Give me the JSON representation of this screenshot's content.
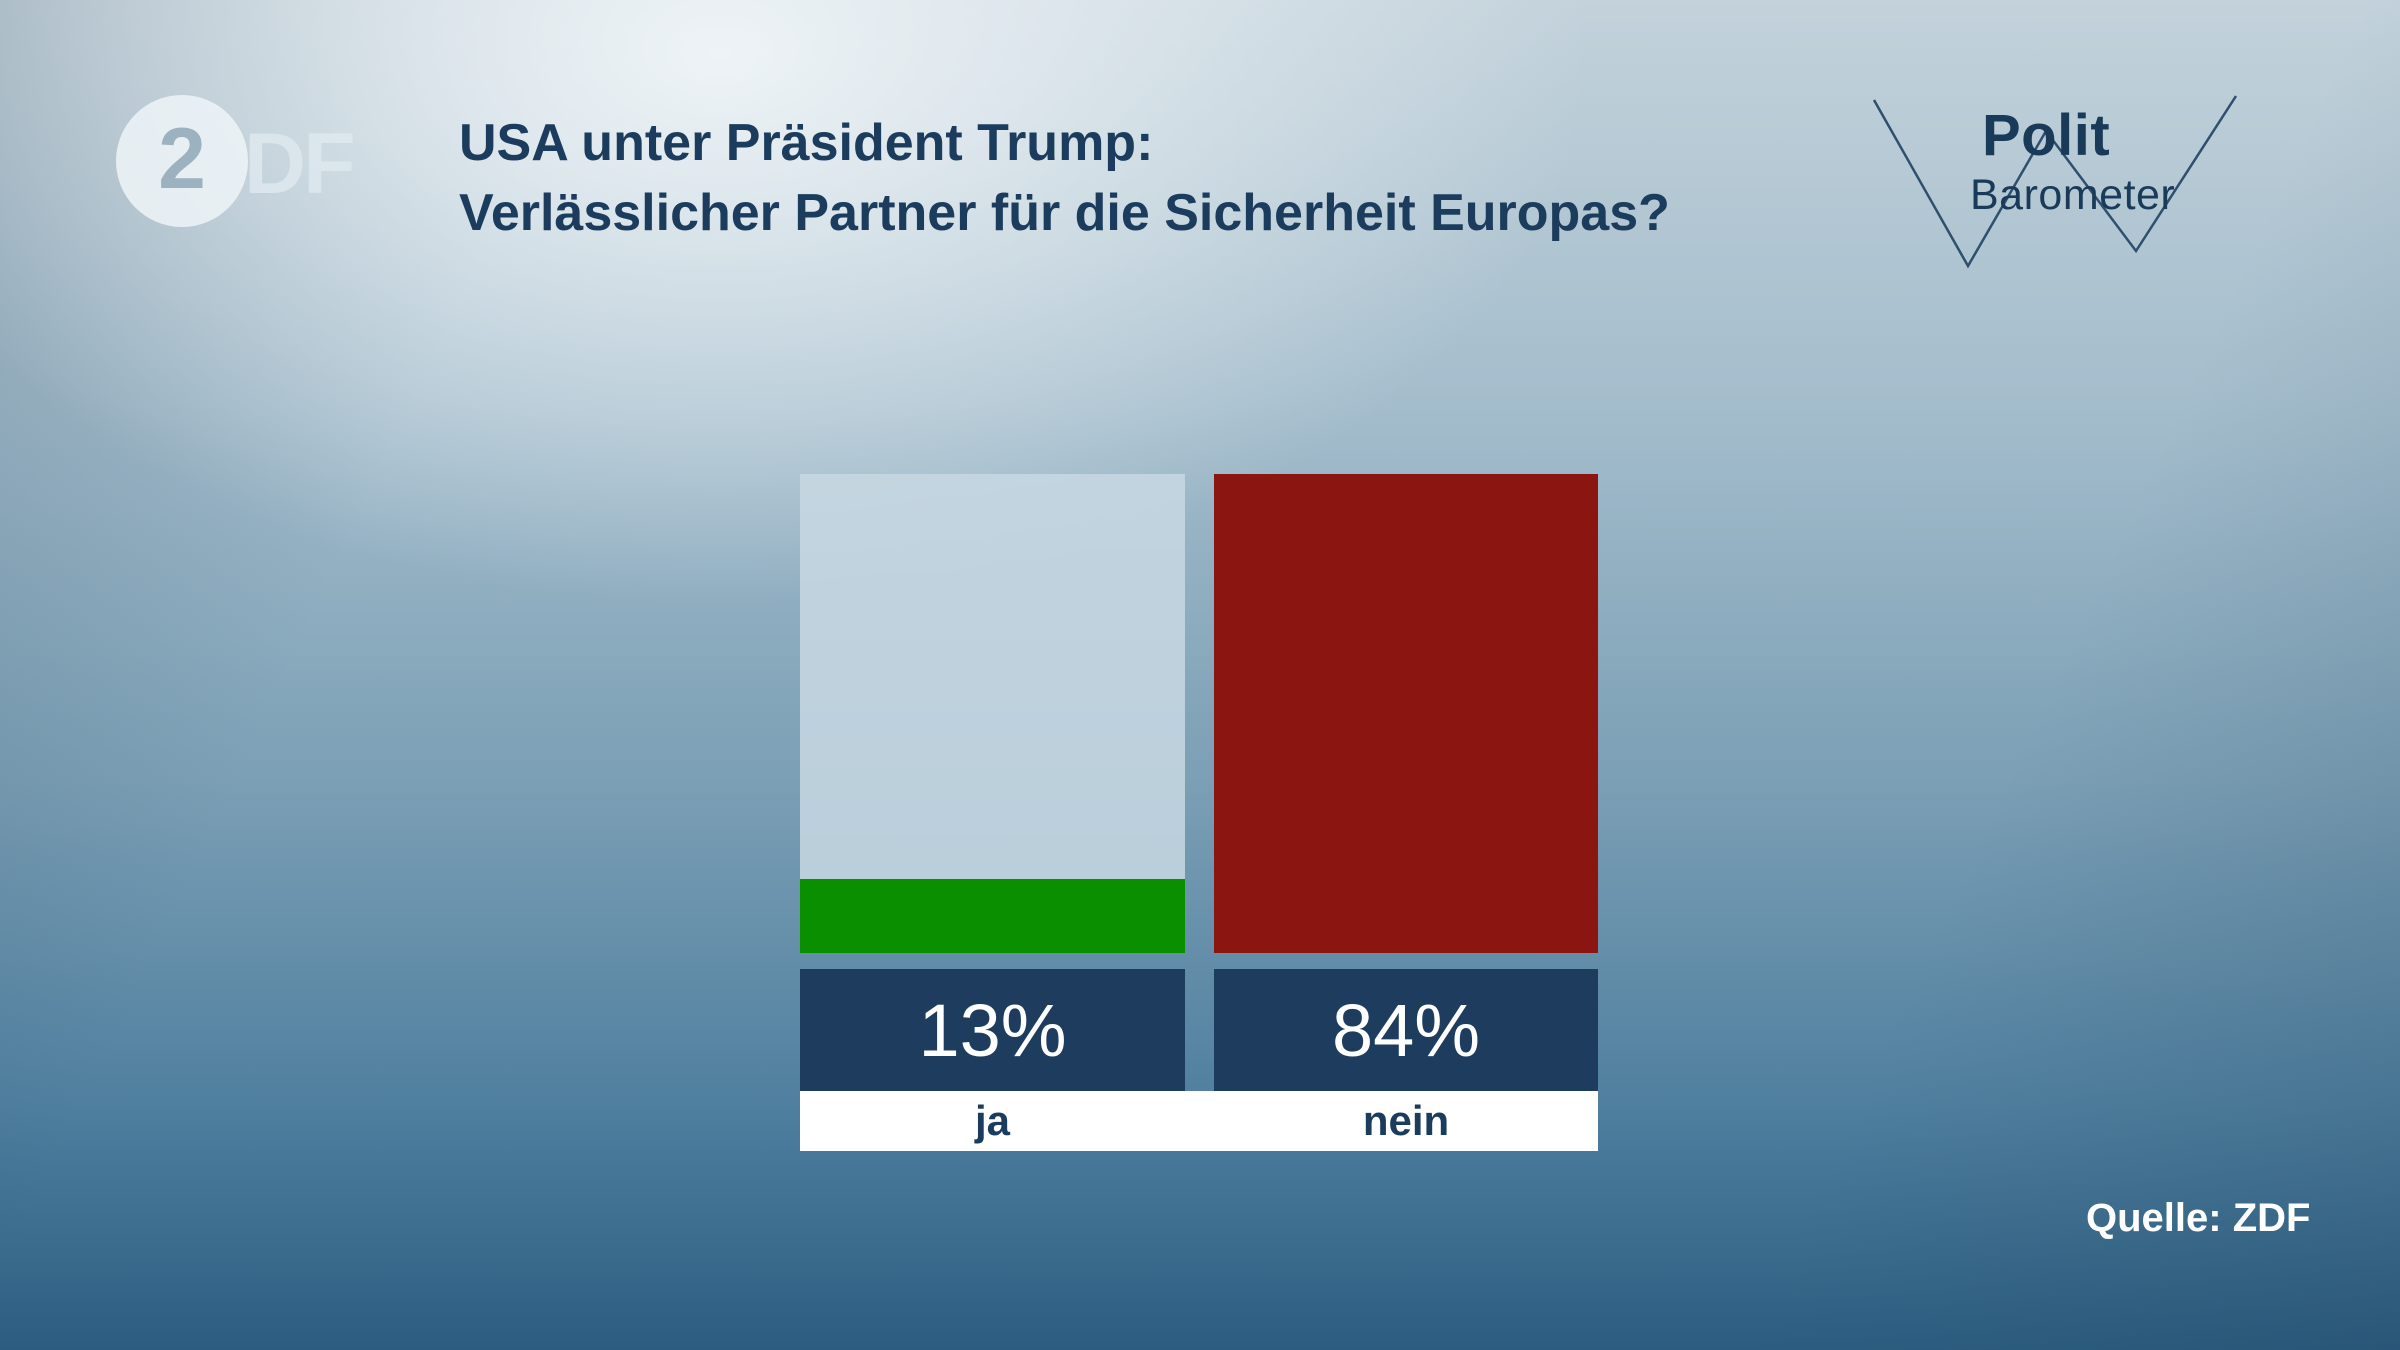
{
  "header": {
    "zdf_logo": {
      "circle_glyph": "2",
      "suffix": "DF"
    },
    "title_line1": "USA unter Präsident Trump:",
    "title_line2": "Verlässlicher Partner für die Sicherheit Europas?",
    "brand_line1": "Polit",
    "brand_line2": "Barometer"
  },
  "chart_data": {
    "type": "bar",
    "title": "USA unter Präsident Trump: Verlässlicher Partner für die Sicherheit Europas?",
    "categories": [
      "ja",
      "nein"
    ],
    "values": [
      13,
      84
    ],
    "value_labels": [
      "13%",
      "84%"
    ],
    "unit": "%",
    "ylim": [
      0,
      84
    ],
    "grid": false,
    "legend": "none",
    "colors": {
      "fills": [
        "#0a8f00",
        "#8b1611"
      ],
      "track": "rgba(200,216,227,0.85)",
      "value_box": "#1e3d5e",
      "label_strip": "#ffffff",
      "title_text": "#1b3c5d",
      "source_text": "#ffffff"
    },
    "source": "Quelle: ZDF"
  },
  "footer": {
    "source": "Quelle: ZDF"
  }
}
